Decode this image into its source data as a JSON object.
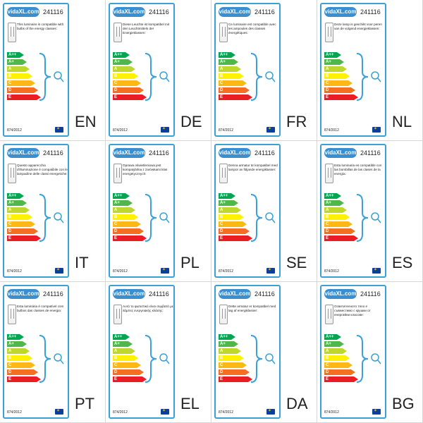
{
  "brand": "vidaXL.com",
  "model": "241116",
  "regulation": "874/2012",
  "energy_classes": [
    "A++",
    "A+",
    "A",
    "B",
    "C",
    "D",
    "E"
  ],
  "class_colors": [
    "#00a651",
    "#50b848",
    "#bed630",
    "#fff200",
    "#fdb913",
    "#f37021",
    "#ed1c24"
  ],
  "panels": [
    {
      "lang": "EN",
      "text": "This luminaire is compatible with bulbs of the energy classes:"
    },
    {
      "lang": "DE",
      "text": "Diese Leuchte ist kompatibel mit den Leuchtmitteln der Energieklassen:"
    },
    {
      "lang": "FR",
      "text": "Ce luminaire est compatible avec les ampoules des classes énergétiques:"
    },
    {
      "lang": "NL",
      "text": "Deze lamp is geschikt voor peren van de volgend energieklassen:"
    },
    {
      "lang": "IT",
      "text": "Questo apparecchio d'illuminazione è compatibile con le lampadine delle classi energetiche:"
    },
    {
      "lang": "PL",
      "text": "Oprawa oświetleniowa jest kompatybilna z żarówkami klas energetycznych:"
    },
    {
      "lang": "SE",
      "text": "Denna armatur är kompatibel med lampor av följande energiklasser:"
    },
    {
      "lang": "ES",
      "text": "Esta luminaria es compatible con las bombillas de las clases de la energía:"
    },
    {
      "lang": "PT",
      "text": "Esta luminária é compatível com bulbos das classes de energia:"
    },
    {
      "lang": "EL",
      "text": "Αυτό το φωτιστικό είναι συμβατό με λάμπες ενεργειακής κλάσης:"
    },
    {
      "lang": "DA",
      "text": "Dette armatur er kompatibel med løg af energiklasser:"
    },
    {
      "lang": "BG",
      "text": "Осветителното тяло е съвместимо с крушки от енергийни класове:"
    }
  ]
}
